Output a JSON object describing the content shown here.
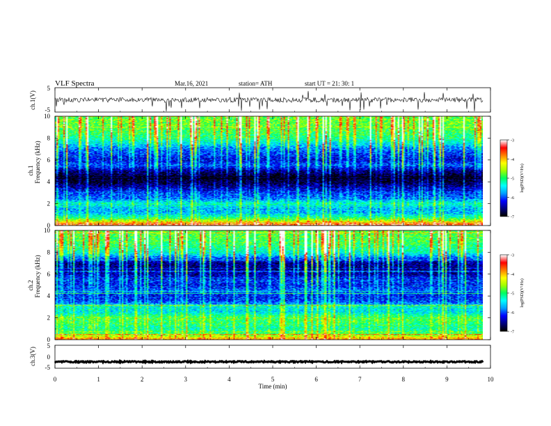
{
  "header": {
    "title": "VLF  Spectra",
    "date": "Mar.16, 2021",
    "station": "station= ATH",
    "start": "start  UT  =    21: 30: 1"
  },
  "chart_data": {
    "type": "spectrogram",
    "xlabel": "Time  (min)",
    "xlim": [
      0,
      10
    ],
    "x_ticks": [
      "0",
      "1",
      "2",
      "3",
      "4",
      "5",
      "6",
      "7",
      "8",
      "9",
      "10"
    ],
    "data_end_min": 9.83,
    "panels": [
      {
        "id": "ch1-waveform",
        "type": "line",
        "ylabel": "ch.1(V)",
        "ylim": [
          -5,
          5
        ],
        "y_ticks": [
          "5",
          "-5"
        ],
        "description_values": {
          "baseline_V": 0,
          "noise_amplitude_V": 1,
          "negative_spikes_to_V": -5
        }
      },
      {
        "id": "ch1-spectrogram",
        "type": "heatmap",
        "ylabel_top": "ch.1",
        "ylabel": "Frequency  (kHz)",
        "ylim": [
          0,
          10
        ],
        "y_ticks": [
          "0",
          "2",
          "4",
          "6",
          "8",
          "10"
        ],
        "band_profile_log_psd": [
          {
            "f_khz": 0.0,
            "v": -3.8
          },
          {
            "f_khz": 0.5,
            "v": -4.8
          },
          {
            "f_khz": 1.0,
            "v": -5.6
          },
          {
            "f_khz": 1.5,
            "v": -5.7
          },
          {
            "f_khz": 2.0,
            "v": -5.3
          },
          {
            "f_khz": 2.5,
            "v": -6.0
          },
          {
            "f_khz": 3.0,
            "v": -6.1
          },
          {
            "f_khz": 3.5,
            "v": -6.5
          },
          {
            "f_khz": 4.0,
            "v": -6.9
          },
          {
            "f_khz": 4.5,
            "v": -6.9
          },
          {
            "f_khz": 5.0,
            "v": -6.6
          },
          {
            "f_khz": 5.5,
            "v": -6.0
          },
          {
            "f_khz": 6.0,
            "v": -6.3
          },
          {
            "f_khz": 7.0,
            "v": -5.9
          },
          {
            "f_khz": 8.0,
            "v": -5.1
          },
          {
            "f_khz": 9.0,
            "v": -4.8
          },
          {
            "f_khz": 10.0,
            "v": -4.7
          }
        ],
        "colorbar": {
          "label": "log(PSD)(V²/Hz)",
          "range": [
            -7,
            -3
          ],
          "ticks": [
            "-3",
            "-4",
            "-5",
            "-6",
            "-7"
          ]
        }
      },
      {
        "id": "ch2-spectrogram",
        "type": "heatmap",
        "ylabel_top": "ch.2",
        "ylabel": "Frequency  (kHz)",
        "ylim": [
          0,
          10
        ],
        "y_ticks": [
          "0",
          "2",
          "4",
          "6",
          "8",
          "10"
        ],
        "band_profile_log_psd": [
          {
            "f_khz": 0.0,
            "v": -3.9
          },
          {
            "f_khz": 0.5,
            "v": -4.9
          },
          {
            "f_khz": 1.0,
            "v": -5.2
          },
          {
            "f_khz": 1.5,
            "v": -5.0
          },
          {
            "f_khz": 2.0,
            "v": -4.9
          },
          {
            "f_khz": 2.5,
            "v": -5.5
          },
          {
            "f_khz": 3.0,
            "v": -5.4
          },
          {
            "f_khz": 3.5,
            "v": -6.1
          },
          {
            "f_khz": 4.0,
            "v": -6.2
          },
          {
            "f_khz": 4.5,
            "v": -6.0
          },
          {
            "f_khz": 5.0,
            "v": -6.2
          },
          {
            "f_khz": 5.5,
            "v": -6.1
          },
          {
            "f_khz": 6.0,
            "v": -6.5
          },
          {
            "f_khz": 7.0,
            "v": -6.6
          },
          {
            "f_khz": 8.0,
            "v": -5.3
          },
          {
            "f_khz": 9.0,
            "v": -4.9
          },
          {
            "f_khz": 10.0,
            "v": -4.8
          }
        ],
        "colorbar": {
          "label": "log(PSD)(V²/Hz)",
          "range": [
            -7,
            -3
          ],
          "ticks": [
            "-3",
            "-4",
            "-5",
            "-6",
            "-7"
          ]
        }
      },
      {
        "id": "ch3-waveform",
        "type": "line",
        "ylabel": "ch.3(V)",
        "ylim": [
          -5,
          5
        ],
        "y_ticks": [
          "5",
          "0",
          "-5"
        ],
        "description_values": {
          "baseline_V": -2.2,
          "noise_amplitude_V": 0.3
        }
      }
    ],
    "colormap": [
      "#000000",
      "#000080",
      "#0000ff",
      "#00a0ff",
      "#00ffff",
      "#00ff60",
      "#a0ff00",
      "#ffff00",
      "#ff8000",
      "#ff0000",
      "#ffffff"
    ]
  }
}
